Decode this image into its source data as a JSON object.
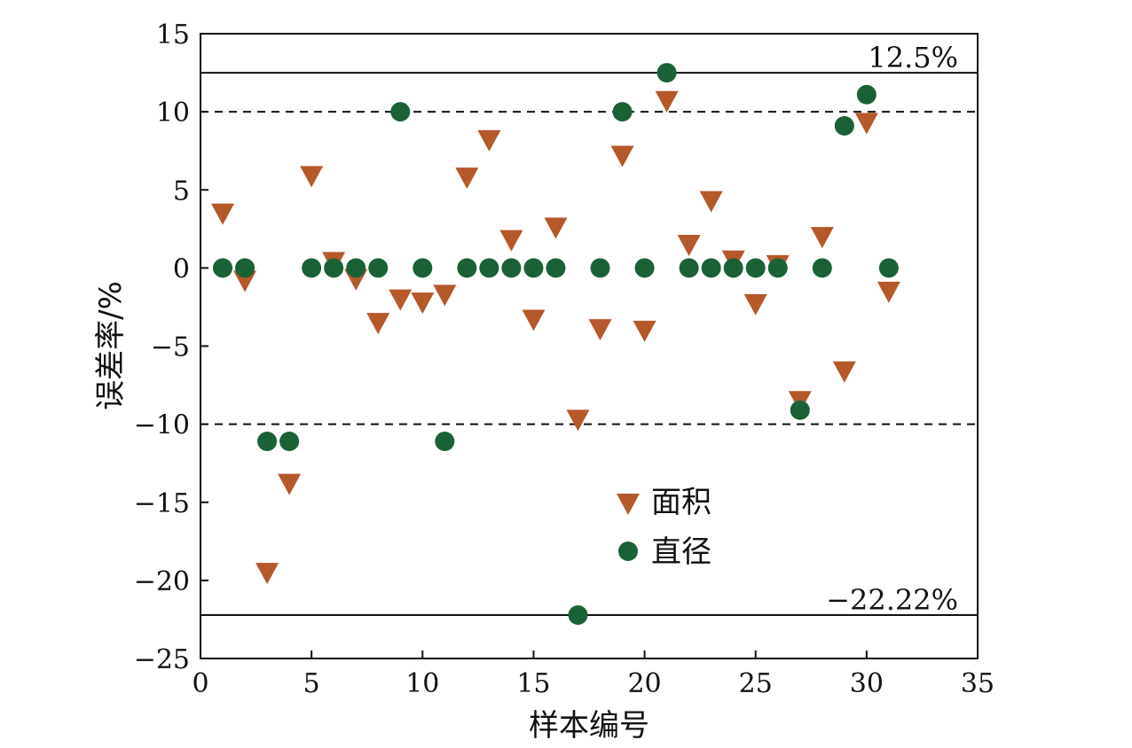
{
  "chart_data": {
    "type": "scatter",
    "xlabel": "样本编号",
    "ylabel": "误差率/%",
    "xlim": [
      0,
      35
    ],
    "ylim": [
      -25,
      15
    ],
    "xticks": [
      0,
      5,
      10,
      15,
      20,
      25,
      30,
      35
    ],
    "yticks": [
      15,
      10,
      5,
      0,
      -5,
      -10,
      -15,
      -20,
      -25
    ],
    "ytick_labels": [
      "15",
      "10",
      "5",
      "0",
      "−5",
      "−10",
      "−15",
      "−20",
      "−25"
    ],
    "grid": false,
    "legend_position": "center",
    "reference_lines": [
      {
        "y": 12.5,
        "style": "solid",
        "label": "12.5%"
      },
      {
        "y": 10,
        "style": "dashed",
        "label": ""
      },
      {
        "y": -10,
        "style": "dashed",
        "label": ""
      },
      {
        "y": -22.22,
        "style": "solid",
        "label": "−22.22%"
      }
    ],
    "series": [
      {
        "name": "面积",
        "marker": "triangle-down",
        "color": "#b5582a",
        "x": [
          1,
          2,
          3,
          4,
          5,
          6,
          7,
          8,
          9,
          10,
          11,
          12,
          13,
          14,
          15,
          16,
          17,
          18,
          19,
          20,
          21,
          22,
          23,
          24,
          25,
          26,
          27,
          28,
          29,
          30,
          31
        ],
        "y": [
          3.5,
          -0.8,
          -19.5,
          -13.8,
          5.9,
          0.4,
          -0.7,
          -3.5,
          -2.0,
          -2.2,
          -1.7,
          5.8,
          8.2,
          1.8,
          -3.3,
          2.6,
          -9.7,
          -3.9,
          7.2,
          -4.0,
          10.7,
          1.5,
          4.3,
          0.5,
          -2.3,
          0.2,
          -8.5,
          2.0,
          -6.6,
          9.3,
          -1.5
        ]
      },
      {
        "name": "直径",
        "marker": "circle",
        "color": "#1a6136",
        "x": [
          1,
          2,
          3,
          4,
          5,
          6,
          7,
          8,
          9,
          10,
          11,
          12,
          13,
          14,
          15,
          16,
          17,
          18,
          19,
          20,
          21,
          22,
          23,
          24,
          25,
          26,
          27,
          28,
          29,
          30,
          31
        ],
        "y": [
          0,
          0,
          -11.1,
          -11.1,
          0,
          0,
          0,
          0,
          10,
          0,
          -11.1,
          0,
          0,
          0,
          0,
          0,
          -22.22,
          0,
          10,
          0,
          12.5,
          0,
          0,
          0,
          0,
          0,
          -9.1,
          0,
          9.1,
          11.1,
          0
        ]
      }
    ]
  }
}
